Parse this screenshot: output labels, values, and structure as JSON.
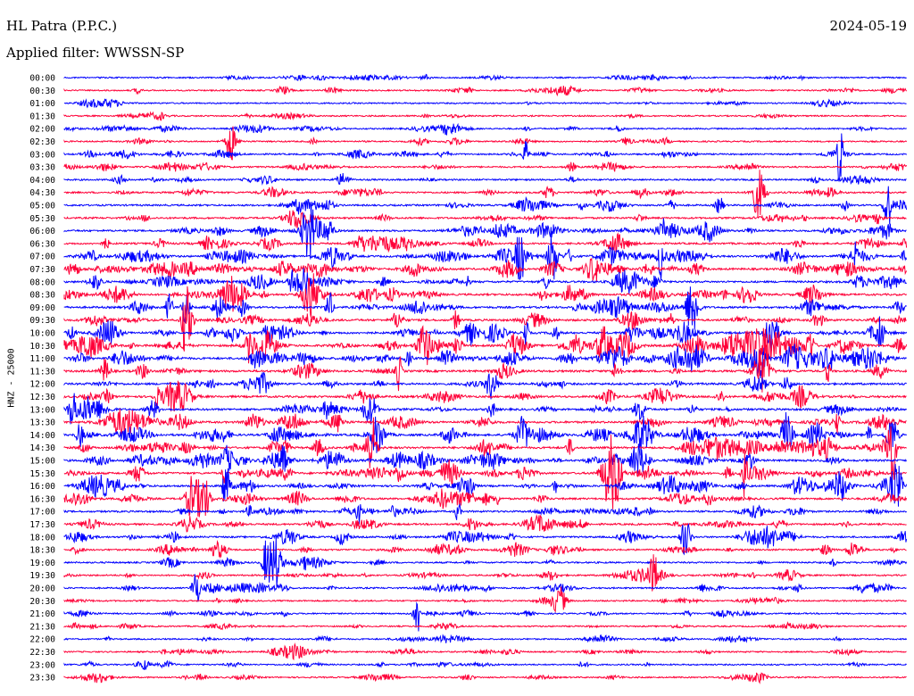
{
  "header": {
    "station": "HL Patra (P.P.C.)",
    "date": "2024-05-19",
    "filter": "Applied filter: WWSSN-SP"
  },
  "channel_label": "HNZ - 25000",
  "colors": {
    "even": "#0000ff",
    "odd": "#ff0038",
    "text": "#000000"
  },
  "chart_data": {
    "type": "line",
    "description": "24-hour helicorder seismogram, one trace per 30 minutes",
    "row_labels": [
      "00:00",
      "00:30",
      "01:00",
      "01:30",
      "02:00",
      "02:30",
      "03:00",
      "03:30",
      "04:00",
      "04:30",
      "05:00",
      "05:30",
      "06:00",
      "06:30",
      "07:00",
      "07:30",
      "08:00",
      "08:30",
      "09:00",
      "09:30",
      "10:00",
      "10:30",
      "11:00",
      "11:30",
      "12:00",
      "12:30",
      "13:00",
      "13:30",
      "14:00",
      "14:30",
      "15:00",
      "15:30",
      "16:00",
      "16:30",
      "17:00",
      "17:30",
      "18:00",
      "18:30",
      "19:00",
      "19:30",
      "20:00",
      "20:30",
      "21:00",
      "21:30",
      "22:00",
      "22:30",
      "23:00",
      "23:30"
    ],
    "ylabel": "HNZ - 25000"
  }
}
